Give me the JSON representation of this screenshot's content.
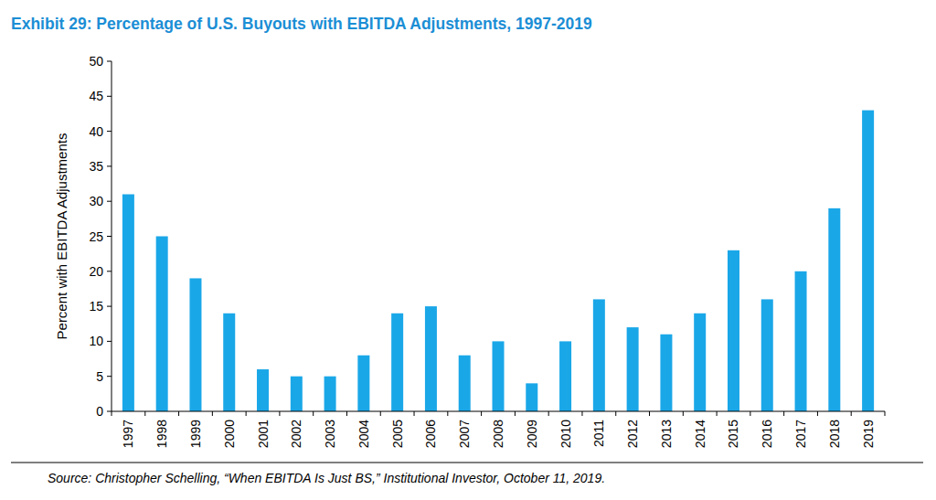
{
  "chart_data": {
    "type": "bar",
    "title": "Exhibit 29: Percentage of U.S. Buyouts with EBITDA Adjustments, 1997-2019",
    "y_label": "Percent with EBITDA Adjustments",
    "source": "Source: Christopher Schelling, “When EBITDA Is Just BS,” Institutional Investor, October 11, 2019.",
    "categories": [
      "1997",
      "1998",
      "1999",
      "2000",
      "2001",
      "2002",
      "2003",
      "2004",
      "2005",
      "2006",
      "2007",
      "2008",
      "2009",
      "2010",
      "2011",
      "2012",
      "2013",
      "2014",
      "2015",
      "2016",
      "2017",
      "2018",
      "2019"
    ],
    "values": [
      31,
      25,
      19,
      14,
      6,
      5,
      5,
      8,
      14,
      15,
      8,
      10,
      4,
      10,
      16,
      12,
      11,
      14,
      23,
      16,
      20,
      29,
      43
    ],
    "color": "#1aa7e8",
    "ylim": [
      0,
      50
    ],
    "yticks": [
      0,
      5,
      10,
      15,
      20,
      25,
      30,
      35,
      40,
      45,
      50
    ],
    "grid": false
  }
}
